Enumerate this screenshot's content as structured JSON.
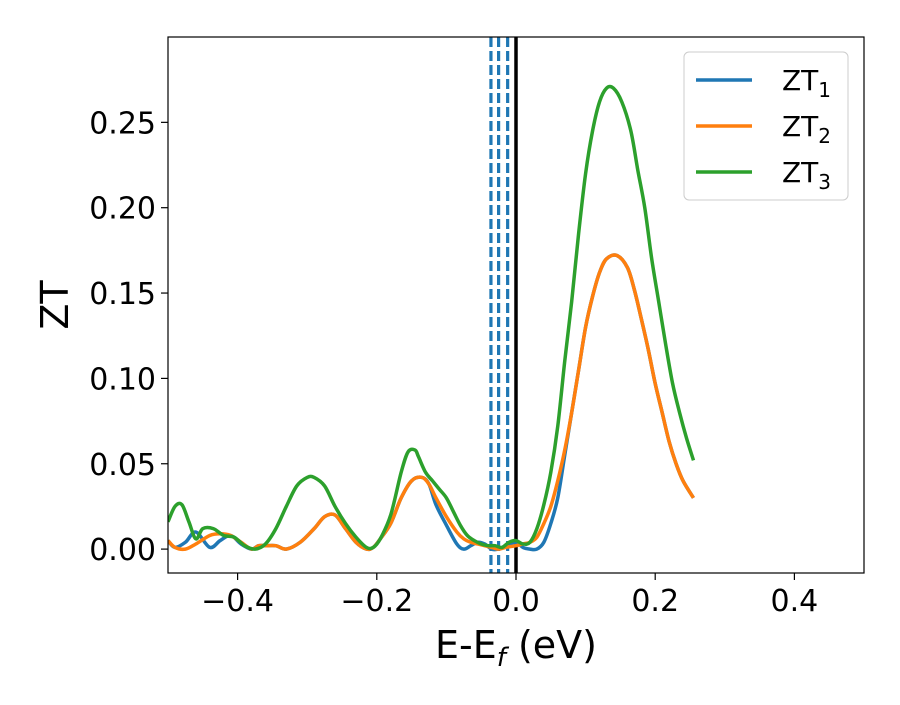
{
  "chart_data": {
    "type": "line",
    "xlabel": "E-E",
    "xlabel_sub": "f",
    "xlabel_unit": " (eV)",
    "ylabel": "ZT",
    "xlim": [
      -0.5,
      0.5
    ],
    "ylim": [
      -0.014,
      0.3
    ],
    "x_ticks": [
      -0.4,
      -0.2,
      0.0,
      0.2,
      0.4
    ],
    "x_tick_labels": [
      "−0.4",
      "−0.2",
      "0.0",
      "0.2",
      "0.4"
    ],
    "y_ticks": [
      0.0,
      0.05,
      0.1,
      0.15,
      0.2,
      0.25
    ],
    "y_tick_labels": [
      "0.00",
      "0.05",
      "0.10",
      "0.15",
      "0.20",
      "0.25"
    ],
    "grid": false,
    "legend_position": "top-right",
    "series": [
      {
        "name": "ZT",
        "name_sub": "1",
        "color": "#1f77b4",
        "x": [
          -0.5,
          -0.49,
          -0.475,
          -0.46,
          -0.44,
          -0.425,
          -0.41,
          -0.395,
          -0.38,
          -0.37,
          -0.36,
          -0.345,
          -0.33,
          -0.31,
          -0.29,
          -0.275,
          -0.26,
          -0.245,
          -0.23,
          -0.215,
          -0.205,
          -0.195,
          -0.18,
          -0.165,
          -0.15,
          -0.135,
          -0.125,
          -0.115,
          -0.1,
          -0.085,
          -0.075,
          -0.065,
          -0.055,
          -0.045,
          -0.035,
          -0.025,
          -0.015,
          0.0,
          0.01,
          0.02,
          0.03,
          0.04,
          0.05,
          0.06,
          0.07,
          0.08,
          0.09,
          0.1,
          0.11,
          0.12,
          0.13,
          0.145,
          0.16,
          0.17,
          0.18,
          0.19,
          0.2,
          0.21,
          0.22,
          0.23,
          0.24,
          0.255
        ],
        "y": [
          0.005,
          0.001,
          0.004,
          0.01,
          0.001,
          0.005,
          0.008,
          0.003,
          0.0,
          0.002,
          0.002,
          0.002,
          0.0,
          0.004,
          0.012,
          0.019,
          0.02,
          0.012,
          0.004,
          0.0,
          0.001,
          0.006,
          0.015,
          0.03,
          0.04,
          0.042,
          0.038,
          0.026,
          0.014,
          0.003,
          0.0,
          0.002,
          0.004,
          0.003,
          0.0,
          0.0,
          0.002,
          0.004,
          0.001,
          0.0,
          0.0,
          0.004,
          0.015,
          0.03,
          0.055,
          0.08,
          0.105,
          0.13,
          0.148,
          0.162,
          0.17,
          0.172,
          0.165,
          0.152,
          0.135,
          0.117,
          0.097,
          0.08,
          0.063,
          0.05,
          0.04,
          0.03
        ]
      },
      {
        "name": "ZT",
        "name_sub": "2",
        "color": "#ff7f0e",
        "x": [
          -0.5,
          -0.49,
          -0.475,
          -0.46,
          -0.44,
          -0.425,
          -0.41,
          -0.395,
          -0.38,
          -0.37,
          -0.36,
          -0.345,
          -0.33,
          -0.31,
          -0.29,
          -0.275,
          -0.26,
          -0.245,
          -0.23,
          -0.215,
          -0.205,
          -0.195,
          -0.18,
          -0.165,
          -0.15,
          -0.135,
          -0.125,
          -0.115,
          -0.1,
          -0.085,
          -0.075,
          -0.065,
          -0.055,
          -0.045,
          -0.035,
          -0.025,
          -0.015,
          0.0,
          0.01,
          0.02,
          0.03,
          0.04,
          0.05,
          0.06,
          0.07,
          0.08,
          0.09,
          0.1,
          0.11,
          0.12,
          0.13,
          0.145,
          0.16,
          0.17,
          0.18,
          0.19,
          0.2,
          0.21,
          0.22,
          0.23,
          0.24,
          0.255
        ],
        "y": [
          0.005,
          0.001,
          0.0,
          0.003,
          0.008,
          0.009,
          0.008,
          0.004,
          0.0,
          0.002,
          0.002,
          0.002,
          0.0,
          0.004,
          0.012,
          0.019,
          0.02,
          0.012,
          0.004,
          0.0,
          0.001,
          0.006,
          0.015,
          0.03,
          0.04,
          0.042,
          0.038,
          0.03,
          0.019,
          0.01,
          0.006,
          0.004,
          0.003,
          0.002,
          0.001,
          0.0,
          0.001,
          0.002,
          0.003,
          0.004,
          0.007,
          0.015,
          0.025,
          0.04,
          0.058,
          0.08,
          0.105,
          0.13,
          0.148,
          0.162,
          0.17,
          0.172,
          0.165,
          0.152,
          0.135,
          0.117,
          0.097,
          0.08,
          0.063,
          0.05,
          0.04,
          0.03
        ]
      },
      {
        "name": "ZT",
        "name_sub": "3",
        "color": "#2ca02c",
        "x": [
          -0.5,
          -0.49,
          -0.48,
          -0.47,
          -0.46,
          -0.45,
          -0.435,
          -0.42,
          -0.405,
          -0.39,
          -0.375,
          -0.36,
          -0.345,
          -0.33,
          -0.315,
          -0.3,
          -0.29,
          -0.275,
          -0.26,
          -0.245,
          -0.23,
          -0.215,
          -0.205,
          -0.195,
          -0.18,
          -0.165,
          -0.155,
          -0.145,
          -0.14,
          -0.13,
          -0.12,
          -0.11,
          -0.1,
          -0.09,
          -0.08,
          -0.07,
          -0.06,
          -0.05,
          -0.04,
          -0.03,
          -0.02,
          -0.01,
          0.0,
          0.01,
          0.02,
          0.03,
          0.04,
          0.05,
          0.06,
          0.07,
          0.08,
          0.09,
          0.1,
          0.11,
          0.12,
          0.13,
          0.14,
          0.152,
          0.165,
          0.175,
          0.185,
          0.195,
          0.205,
          0.215,
          0.225,
          0.235,
          0.245,
          0.255
        ],
        "y": [
          0.016,
          0.025,
          0.026,
          0.016,
          0.006,
          0.012,
          0.012,
          0.008,
          0.007,
          0.002,
          0.0,
          0.003,
          0.012,
          0.025,
          0.037,
          0.042,
          0.042,
          0.037,
          0.025,
          0.015,
          0.007,
          0.001,
          0.001,
          0.006,
          0.02,
          0.045,
          0.057,
          0.058,
          0.054,
          0.045,
          0.04,
          0.035,
          0.03,
          0.022,
          0.014,
          0.008,
          0.005,
          0.003,
          0.002,
          0.002,
          0.001,
          0.004,
          0.005,
          0.003,
          0.004,
          0.012,
          0.026,
          0.045,
          0.072,
          0.11,
          0.145,
          0.185,
          0.22,
          0.245,
          0.262,
          0.27,
          0.27,
          0.262,
          0.245,
          0.222,
          0.2,
          0.17,
          0.145,
          0.12,
          0.097,
          0.08,
          0.065,
          0.052
        ]
      }
    ],
    "vertical_lines": [
      {
        "x": -0.036,
        "color": "#1f77b4",
        "style": "dashed"
      },
      {
        "x": -0.025,
        "color": "#1f77b4",
        "style": "dashed"
      },
      {
        "x": -0.012,
        "color": "#1f77b4",
        "style": "dashed"
      },
      {
        "x": 0.0,
        "color": "#000000",
        "style": "solid"
      }
    ]
  }
}
